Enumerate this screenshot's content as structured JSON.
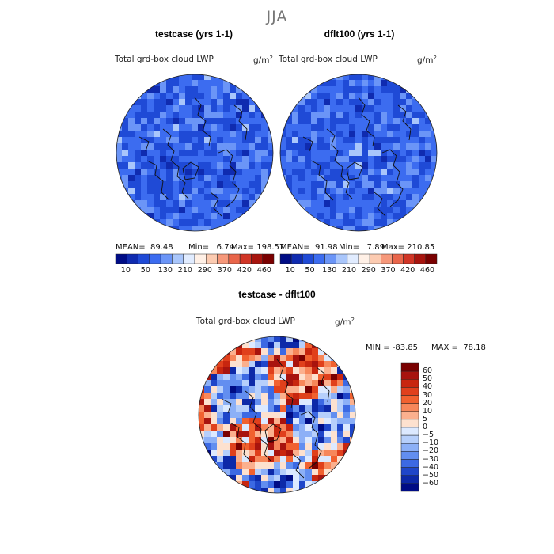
{
  "figure": {
    "title": "JJA"
  },
  "chart_data": [
    {
      "type": "heatmap",
      "projection": "north polar stereographic",
      "title": "testcase (yrs 1-1)",
      "variable": "Total grd-box cloud LWP",
      "units": "g/m",
      "units_exp": "2",
      "stats": {
        "mean_label": "MEAN=",
        "mean": "89.48",
        "min_label": "Min=",
        "min": "6.74",
        "max_label": "Max=",
        "max": "198.57"
      },
      "colorbar": {
        "orientation": "horizontal",
        "ticks": [
          "10",
          "50",
          "130",
          "210",
          "290",
          "370",
          "420",
          "460"
        ],
        "colors": [
          "#000c85",
          "#0f2bb0",
          "#1f4ad6",
          "#3c6cf0",
          "#6b95f7",
          "#a9c6fb",
          "#e1ecff",
          "#fff0e6",
          "#fccbb1",
          "#f6987a",
          "#e9654a",
          "#d13526",
          "#a8140e",
          "#7a0000"
        ]
      },
      "dominant_range": [
        80,
        130
      ]
    },
    {
      "type": "heatmap",
      "projection": "north polar stereographic",
      "title": "dflt100 (yrs 1-1)",
      "variable": "Total grd-box cloud LWP",
      "units": "g/m",
      "units_exp": "2",
      "stats": {
        "mean_label": "MEAN=",
        "mean": "91.98",
        "min_label": "Min=",
        "min": "7.89",
        "max_label": "Max=",
        "max": "210.85"
      },
      "colorbar": {
        "orientation": "horizontal",
        "ticks": [
          "10",
          "50",
          "130",
          "210",
          "290",
          "370",
          "420",
          "460"
        ],
        "colors": [
          "#000c85",
          "#0f2bb0",
          "#1f4ad6",
          "#3c6cf0",
          "#6b95f7",
          "#a9c6fb",
          "#e1ecff",
          "#fff0e6",
          "#fccbb1",
          "#f6987a",
          "#e9654a",
          "#d13526",
          "#a8140e",
          "#7a0000"
        ]
      },
      "dominant_range": [
        80,
        130
      ]
    },
    {
      "type": "heatmap",
      "projection": "north polar stereographic",
      "title": "testcase - dflt100",
      "variable": "Total grd-box cloud LWP",
      "units": "g/m",
      "units_exp": "2",
      "stats": {
        "min_label": "MIN =",
        "min": "-83.85",
        "max_label": "MAX =",
        "max": "78.18"
      },
      "colorbar": {
        "orientation": "vertical",
        "ticks": [
          "60",
          "50",
          "40",
          "30",
          "20",
          "10",
          "5",
          "0",
          "−5",
          "−10",
          "−20",
          "−30",
          "−40",
          "−50",
          "−60"
        ],
        "colors": [
          "#7a0000",
          "#a8140e",
          "#c8260f",
          "#e0401c",
          "#f1612f",
          "#f7875a",
          "#fbb08e",
          "#fde1cf",
          "#dce9ff",
          "#b6cffb",
          "#8cb0f7",
          "#628ef0",
          "#3c69e3",
          "#1f46c9",
          "#0d29a8",
          "#000c85"
        ]
      }
    }
  ]
}
